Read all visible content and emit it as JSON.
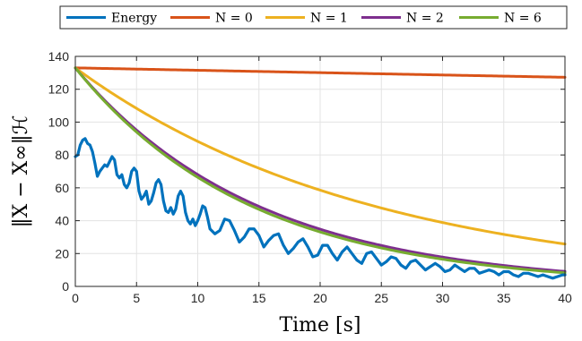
{
  "chart_data": {
    "type": "line",
    "xlabel": "Time [s]",
    "ylabel": "‖X − X∞‖ℋ",
    "xlim": [
      0,
      40
    ],
    "ylim": [
      0,
      140
    ],
    "xticks": [
      0,
      5,
      10,
      15,
      20,
      25,
      30,
      35,
      40
    ],
    "yticks": [
      0,
      20,
      40,
      60,
      80,
      100,
      120,
      140
    ],
    "grid": true,
    "legend": "top, horizontal",
    "series": [
      {
        "name": "Energy",
        "color": "#0072BD",
        "x": [
          0,
          0.2,
          0.4,
          0.6,
          0.8,
          1.0,
          1.2,
          1.4,
          1.6,
          1.8,
          2.0,
          2.2,
          2.4,
          2.6,
          2.8,
          3.0,
          3.2,
          3.4,
          3.6,
          3.8,
          4.0,
          4.2,
          4.4,
          4.6,
          4.8,
          5.0,
          5.2,
          5.4,
          5.6,
          5.8,
          6.0,
          6.2,
          6.4,
          6.6,
          6.8,
          7.0,
          7.2,
          7.4,
          7.6,
          7.8,
          8.0,
          8.2,
          8.4,
          8.6,
          8.8,
          9.0,
          9.2,
          9.4,
          9.6,
          9.8,
          10.0,
          10.2,
          10.4,
          10.6,
          10.8,
          11.0,
          11.4,
          11.8,
          12.2,
          12.6,
          13.0,
          13.4,
          13.8,
          14.2,
          14.6,
          15.0,
          15.4,
          15.8,
          16.2,
          16.6,
          17.0,
          17.4,
          17.8,
          18.2,
          18.6,
          19.0,
          19.4,
          19.8,
          20.2,
          20.6,
          21.0,
          21.4,
          21.8,
          22.2,
          22.6,
          23.0,
          23.4,
          23.8,
          24.2,
          24.6,
          25.0,
          25.4,
          25.8,
          26.2,
          26.6,
          27.0,
          27.4,
          27.8,
          28.2,
          28.6,
          29.0,
          29.4,
          29.8,
          30.2,
          30.6,
          31.0,
          31.4,
          31.8,
          32.2,
          32.6,
          33.0,
          33.4,
          33.8,
          34.2,
          34.6,
          35.0,
          35.4,
          35.8,
          36.2,
          36.6,
          37.0,
          37.4,
          37.8,
          38.2,
          38.6,
          39.0,
          39.4,
          39.8,
          40.0
        ],
        "values": [
          79,
          80,
          86,
          89,
          90,
          87,
          86,
          82,
          75,
          67,
          70,
          72,
          74,
          73,
          76,
          79,
          77,
          68,
          66,
          68,
          62,
          60,
          63,
          70,
          72,
          70,
          58,
          53,
          55,
          58,
          50,
          52,
          57,
          63,
          65,
          62,
          52,
          46,
          45,
          48,
          44,
          47,
          55,
          58,
          55,
          45,
          40,
          38,
          41,
          37,
          40,
          44,
          49,
          48,
          42,
          35,
          32,
          34,
          41,
          40,
          34,
          27,
          30,
          35,
          35,
          31,
          24,
          28,
          31,
          32,
          25,
          20,
          23,
          27,
          29,
          24,
          18,
          19,
          25,
          25,
          20,
          16,
          21,
          24,
          20,
          16,
          14,
          20,
          21,
          17,
          13,
          15,
          18,
          17,
          13,
          11,
          15,
          16,
          13,
          10,
          12,
          14,
          12,
          9,
          10,
          13,
          11,
          9,
          11,
          11,
          8,
          9,
          10,
          9,
          7,
          9,
          9,
          7,
          6,
          8,
          8,
          7,
          6,
          7,
          6,
          5,
          6,
          7,
          7
        ]
      },
      {
        "name": "N = 0",
        "color": "#D95319",
        "model": "exp",
        "y0": 133,
        "k": 0.0011
      },
      {
        "name": "N = 1",
        "color": "#EDB120",
        "model": "exp",
        "y0": 133,
        "k": 0.041
      },
      {
        "name": "N = 2",
        "color": "#7E2F8E",
        "model": "exp",
        "y0": 133,
        "k": 0.067
      },
      {
        "name": "N = 6",
        "color": "#77AC30",
        "model": "exp",
        "y0": 133,
        "k": 0.0695
      }
    ]
  }
}
